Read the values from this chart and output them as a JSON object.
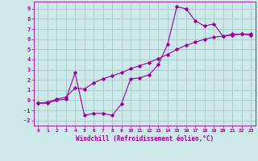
{
  "xlabel": "Windchill (Refroidissement éolien,°C)",
  "line1_x": [
    0,
    1,
    2,
    3,
    4,
    5,
    6,
    7,
    8,
    9,
    10,
    11,
    12,
    13,
    14,
    15,
    16,
    17,
    18,
    19,
    20,
    21,
    22,
    23
  ],
  "line1_y": [
    -0.3,
    -0.3,
    0.0,
    0.1,
    2.7,
    -1.5,
    -1.3,
    -1.3,
    -1.5,
    -0.4,
    2.1,
    2.2,
    2.5,
    3.5,
    5.5,
    9.2,
    9.0,
    7.8,
    7.3,
    7.5,
    6.3,
    6.4,
    6.5,
    6.4
  ],
  "line2_x": [
    0,
    1,
    2,
    3,
    4,
    5,
    6,
    7,
    8,
    9,
    10,
    11,
    12,
    13,
    14,
    15,
    16,
    17,
    18,
    19,
    20,
    21,
    22,
    23
  ],
  "line2_y": [
    -0.3,
    -0.2,
    0.1,
    0.3,
    1.2,
    1.1,
    1.7,
    2.1,
    2.4,
    2.7,
    3.1,
    3.4,
    3.7,
    4.1,
    4.5,
    5.0,
    5.4,
    5.7,
    6.0,
    6.2,
    6.3,
    6.5,
    6.5,
    6.5
  ],
  "line_color": "#990099",
  "bg_color": "#cce8e8",
  "grid_color": "#aacccc",
  "xlim": [
    -0.5,
    23.5
  ],
  "ylim": [
    -2.5,
    9.7
  ],
  "yticks": [
    -2,
    -1,
    0,
    1,
    2,
    3,
    4,
    5,
    6,
    7,
    8,
    9
  ],
  "xticks": [
    0,
    1,
    2,
    3,
    4,
    5,
    6,
    7,
    8,
    9,
    10,
    11,
    12,
    13,
    14,
    15,
    16,
    17,
    18,
    19,
    20,
    21,
    22,
    23
  ],
  "tick_fontsize": 5.0,
  "xlabel_fontsize": 5.5
}
